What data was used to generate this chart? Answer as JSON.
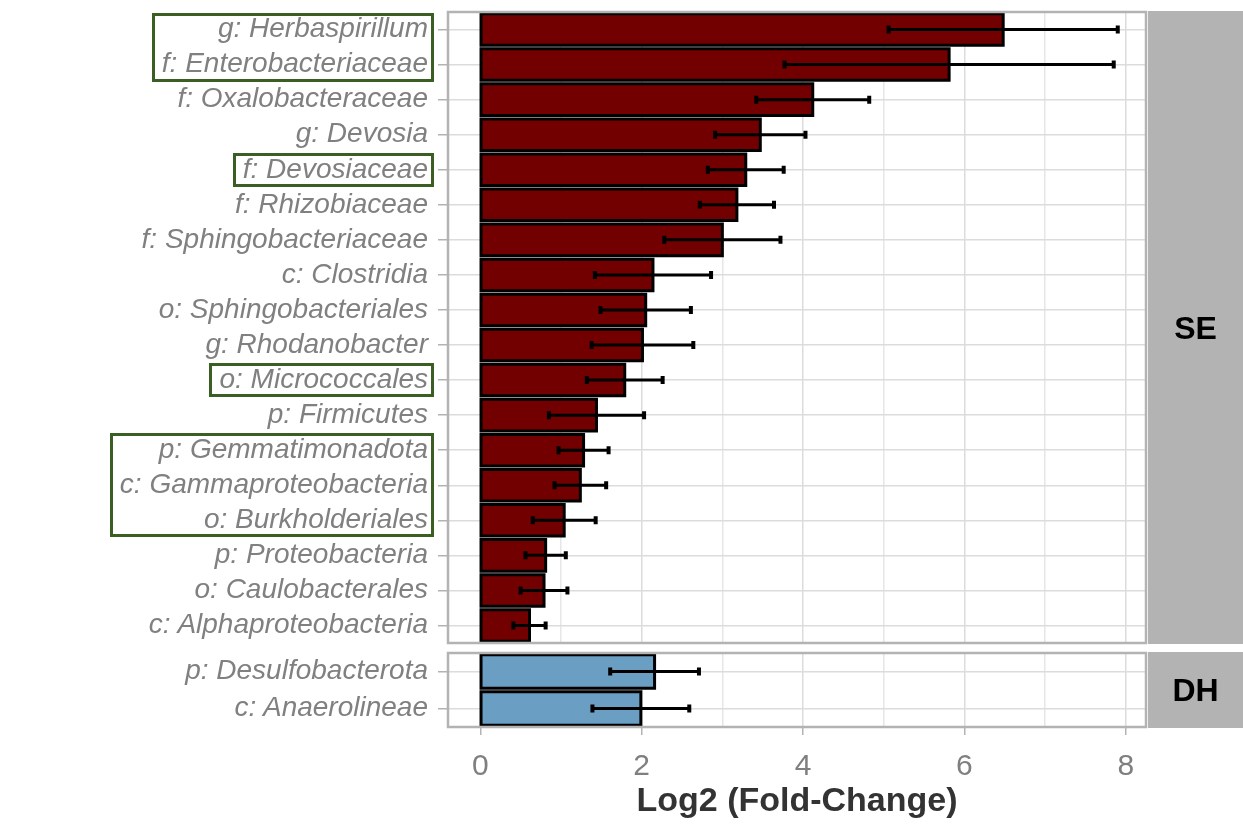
{
  "chart_data": [
    {
      "type": "bar",
      "annotations": [
        "SE"
      ],
      "orientation": "horizontal",
      "categories": [
        "g: Herbaspirillum",
        "f: Enterobacteriaceae",
        "f: Oxalobacteraceae",
        "g: Devosia",
        "f: Devosiaceae",
        "f: Rhizobiaceae",
        "f: Sphingobacteriaceae",
        "c: Clostridia",
        "o: Sphingobacteriales",
        "g: Rhodanobacter",
        "o: Micrococcales",
        "p: Firmicutes",
        "p: Gemmatimonadota",
        "c: Gammaproteobacteria",
        "o: Burkholderiales",
        "p: Proteobacteria",
        "o: Caulobacterales",
        "c: Alphaproteobacteria"
      ],
      "values": [
        6.48,
        5.81,
        4.12,
        3.47,
        3.29,
        3.18,
        3.0,
        2.14,
        2.05,
        2.01,
        1.79,
        1.44,
        1.28,
        1.24,
        1.04,
        0.81,
        0.79,
        0.61
      ],
      "errors": [
        1.42,
        2.04,
        0.7,
        0.56,
        0.47,
        0.46,
        0.72,
        0.72,
        0.56,
        0.63,
        0.47,
        0.59,
        0.31,
        0.32,
        0.39,
        0.25,
        0.29,
        0.2
      ],
      "color": "#720000",
      "xlim": [
        -0.4,
        8.25
      ],
      "xticks": [
        0,
        {
          "value": 1,
          "label": null
        },
        2,
        {
          "value": 3,
          "label": null
        },
        4,
        {
          "value": 5,
          "label": null
        },
        6,
        {
          "value": 7,
          "label": null
        },
        8
      ],
      "grid": true,
      "tick_labels": "y"
    },
    {
      "type": "bar",
      "annotations": [
        "DH"
      ],
      "orientation": "horizontal",
      "categories": [
        "p: Desulfobacterota",
        "c: Anaerolineae"
      ],
      "values": [
        2.16,
        1.99
      ],
      "errors": [
        0.55,
        0.6
      ],
      "color": "#6a9ec2",
      "xlim": [
        -0.4,
        8.25
      ],
      "xticks": [
        0,
        2,
        {
          "value": 3,
          "label": null
        },
        4,
        {
          "value": 5,
          "label": null
        },
        6,
        {
          "value": 7,
          "label": null
        },
        8
      ],
      "xlabel": "Log2 (Fold-Change)",
      "grid": true
    }
  ]
}
